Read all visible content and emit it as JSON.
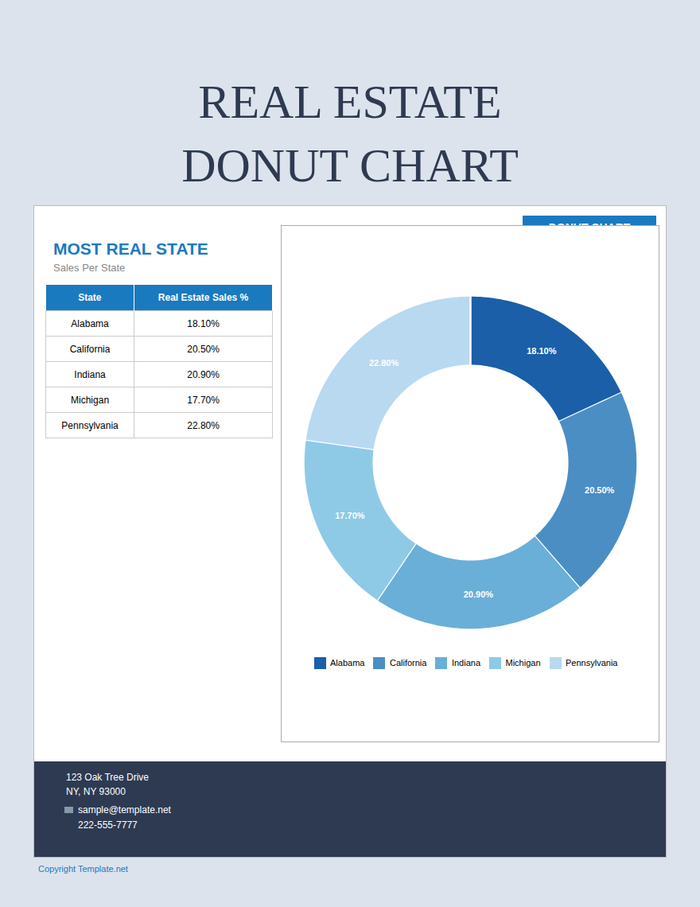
{
  "chart_data": {
    "type": "donut",
    "title": "REAL ESTATE\nDONUT CHART",
    "subtitle": "MOST REAL STATE",
    "annotations": [
      "DONUT CHART",
      "Sales Per State",
      "State",
      "Real Estate Sales %",
      "123 Oak Tree Drive",
      "NY, NY 93000",
      "sample@template.net",
      "222-555-7777",
      "Copyright Template.net"
    ],
    "categories": [
      "Alabama",
      "California",
      "Indiana",
      "Michigan",
      "Pennsylvania"
    ],
    "values": [
      18.1,
      20.5,
      20.9,
      17.7,
      22.8
    ],
    "value_labels": [
      "18.10%",
      "20.50%",
      "20.90%",
      "17.70%",
      "22.80%"
    ],
    "colors": [
      "#1a5fa8",
      "#4a8ec4",
      "#6aafd8",
      "#8ecae6",
      "#b8d9f0"
    ],
    "data_labels": true,
    "legend": "bottom"
  }
}
